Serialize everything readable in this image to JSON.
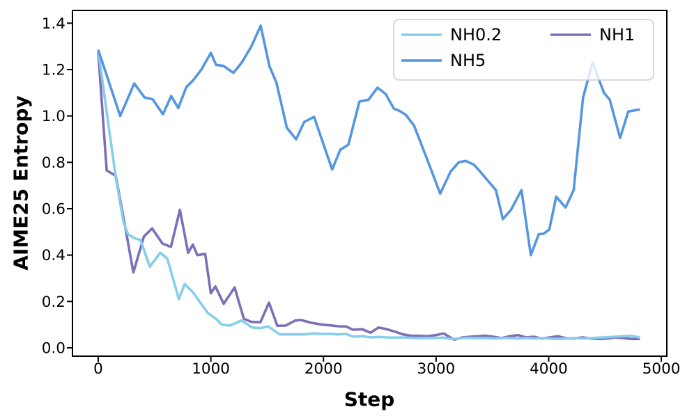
{
  "chart_data": {
    "type": "line",
    "title": "",
    "xlabel": "Step",
    "ylabel": "AIME25 Entropy",
    "xlim": [
      -229,
      5049
    ],
    "ylim": [
      -0.036,
      1.455
    ],
    "x_ticks": [
      0,
      1000,
      2000,
      3000,
      4000,
      5000
    ],
    "y_ticks": [
      0.0,
      0.2,
      0.4,
      0.6,
      0.8,
      1.0,
      1.2,
      1.4
    ],
    "grid": false,
    "legend": {
      "position": "upper right",
      "columns": 2,
      "labels": [
        "NH0.2",
        "NH5",
        "NH1"
      ]
    },
    "axis_color": "#000000",
    "series": [
      {
        "name": "NH0.2",
        "color": "#87CEEB",
        "points": [
          [
            0,
            1.285
          ],
          [
            80,
            1.0
          ],
          [
            160,
            0.72
          ],
          [
            225,
            0.54
          ],
          [
            265,
            0.49
          ],
          [
            320,
            0.473
          ],
          [
            375,
            0.465
          ],
          [
            458,
            0.35
          ],
          [
            550,
            0.41
          ],
          [
            613,
            0.385
          ],
          [
            716,
            0.21
          ],
          [
            767,
            0.275
          ],
          [
            840,
            0.24
          ],
          [
            973,
            0.15
          ],
          [
            1046,
            0.125
          ],
          [
            1097,
            0.1
          ],
          [
            1170,
            0.096
          ],
          [
            1273,
            0.118
          ],
          [
            1366,
            0.088
          ],
          [
            1440,
            0.085
          ],
          [
            1510,
            0.092
          ],
          [
            1610,
            0.058
          ],
          [
            1690,
            0.058
          ],
          [
            1760,
            0.058
          ],
          [
            1840,
            0.058
          ],
          [
            1912,
            0.062
          ],
          [
            1990,
            0.06
          ],
          [
            2060,
            0.06
          ],
          [
            2130,
            0.058
          ],
          [
            2200,
            0.06
          ],
          [
            2263,
            0.048
          ],
          [
            2345,
            0.05
          ],
          [
            2420,
            0.045
          ],
          [
            2490,
            0.047
          ],
          [
            2560,
            0.045
          ],
          [
            2634,
            0.044
          ],
          [
            2706,
            0.045
          ],
          [
            2780,
            0.043
          ],
          [
            2850,
            0.042
          ],
          [
            2925,
            0.043
          ],
          [
            3000,
            0.042
          ],
          [
            3067,
            0.044
          ],
          [
            3137,
            0.038
          ],
          [
            3232,
            0.042
          ],
          [
            3304,
            0.043
          ],
          [
            3375,
            0.042
          ],
          [
            3438,
            0.043
          ],
          [
            3510,
            0.04
          ],
          [
            3582,
            0.042
          ],
          [
            3655,
            0.042
          ],
          [
            3727,
            0.04
          ],
          [
            3800,
            0.042
          ],
          [
            3870,
            0.04
          ],
          [
            3940,
            0.042
          ],
          [
            4010,
            0.04
          ],
          [
            4080,
            0.038
          ],
          [
            4150,
            0.04
          ],
          [
            4222,
            0.042
          ],
          [
            4300,
            0.04
          ],
          [
            4380,
            0.042
          ],
          [
            4450,
            0.044
          ],
          [
            4520,
            0.046
          ],
          [
            4590,
            0.048
          ],
          [
            4660,
            0.05
          ],
          [
            4738,
            0.052
          ],
          [
            4810,
            0.044
          ]
        ]
      },
      {
        "name": "NH5",
        "color": "#5596E0",
        "points": [
          [
            0,
            1.285
          ],
          [
            195,
            1.0
          ],
          [
            320,
            1.14
          ],
          [
            410,
            1.08
          ],
          [
            483,
            1.072
          ],
          [
            575,
            1.007
          ],
          [
            648,
            1.086
          ],
          [
            710,
            1.034
          ],
          [
            782,
            1.124
          ],
          [
            843,
            1.154
          ],
          [
            916,
            1.2
          ],
          [
            1000,
            1.272
          ],
          [
            1046,
            1.22
          ],
          [
            1112,
            1.216
          ],
          [
            1200,
            1.186
          ],
          [
            1273,
            1.229
          ],
          [
            1360,
            1.3
          ],
          [
            1442,
            1.389
          ],
          [
            1520,
            1.214
          ],
          [
            1582,
            1.144
          ],
          [
            1675,
            0.949
          ],
          [
            1757,
            0.899
          ],
          [
            1829,
            0.974
          ],
          [
            1916,
            0.996
          ],
          [
            2077,
            0.769
          ],
          [
            2149,
            0.854
          ],
          [
            2221,
            0.876
          ],
          [
            2319,
            1.062
          ],
          [
            2400,
            1.07
          ],
          [
            2479,
            1.122
          ],
          [
            2552,
            1.095
          ],
          [
            2624,
            1.032
          ],
          [
            2675,
            1.022
          ],
          [
            2731,
            1.005
          ],
          [
            2805,
            0.958
          ],
          [
            2923,
            0.81
          ],
          [
            3036,
            0.665
          ],
          [
            3129,
            0.76
          ],
          [
            3201,
            0.8
          ],
          [
            3263,
            0.806
          ],
          [
            3336,
            0.79
          ],
          [
            3400,
            0.755
          ],
          [
            3531,
            0.68
          ],
          [
            3593,
            0.555
          ],
          [
            3665,
            0.595
          ],
          [
            3758,
            0.68
          ],
          [
            3841,
            0.4
          ],
          [
            3912,
            0.49
          ],
          [
            3954,
            0.492
          ],
          [
            4005,
            0.51
          ],
          [
            4067,
            0.652
          ],
          [
            4150,
            0.605
          ],
          [
            4222,
            0.68
          ],
          [
            4305,
            1.08
          ],
          [
            4390,
            1.23
          ],
          [
            4490,
            1.1
          ],
          [
            4542,
            1.07
          ],
          [
            4634,
            0.905
          ],
          [
            4707,
            1.019
          ],
          [
            4810,
            1.028
          ]
        ]
      },
      {
        "name": "NH1",
        "color": "#7D6FB7",
        "points": [
          [
            0,
            1.275
          ],
          [
            75,
            0.765
          ],
          [
            155,
            0.742
          ],
          [
            240,
            0.52
          ],
          [
            312,
            0.325
          ],
          [
            405,
            0.48
          ],
          [
            478,
            0.515
          ],
          [
            570,
            0.45
          ],
          [
            645,
            0.435
          ],
          [
            725,
            0.595
          ],
          [
            798,
            0.41
          ],
          [
            840,
            0.445
          ],
          [
            880,
            0.4
          ],
          [
            950,
            0.405
          ],
          [
            1000,
            0.235
          ],
          [
            1040,
            0.265
          ],
          [
            1114,
            0.19
          ],
          [
            1211,
            0.26
          ],
          [
            1293,
            0.125
          ],
          [
            1360,
            0.112
          ],
          [
            1440,
            0.11
          ],
          [
            1516,
            0.195
          ],
          [
            1590,
            0.095
          ],
          [
            1665,
            0.096
          ],
          [
            1750,
            0.118
          ],
          [
            1800,
            0.12
          ],
          [
            1890,
            0.108
          ],
          [
            1990,
            0.1
          ],
          [
            2060,
            0.097
          ],
          [
            2130,
            0.093
          ],
          [
            2200,
            0.092
          ],
          [
            2263,
            0.078
          ],
          [
            2345,
            0.08
          ],
          [
            2418,
            0.065
          ],
          [
            2490,
            0.088
          ],
          [
            2562,
            0.08
          ],
          [
            2634,
            0.07
          ],
          [
            2706,
            0.058
          ],
          [
            2779,
            0.052
          ],
          [
            2851,
            0.052
          ],
          [
            2923,
            0.05
          ],
          [
            3000,
            0.055
          ],
          [
            3067,
            0.062
          ],
          [
            3160,
            0.035
          ],
          [
            3232,
            0.045
          ],
          [
            3304,
            0.048
          ],
          [
            3375,
            0.05
          ],
          [
            3438,
            0.052
          ],
          [
            3510,
            0.048
          ],
          [
            3582,
            0.042
          ],
          [
            3655,
            0.05
          ],
          [
            3727,
            0.055
          ],
          [
            3800,
            0.045
          ],
          [
            3870,
            0.048
          ],
          [
            3940,
            0.04
          ],
          [
            4010,
            0.045
          ],
          [
            4080,
            0.05
          ],
          [
            4150,
            0.042
          ],
          [
            4222,
            0.04
          ],
          [
            4300,
            0.045
          ],
          [
            4380,
            0.04
          ],
          [
            4450,
            0.038
          ],
          [
            4520,
            0.04
          ],
          [
            4590,
            0.045
          ],
          [
            4660,
            0.042
          ],
          [
            4740,
            0.038
          ],
          [
            4810,
            0.038
          ]
        ]
      }
    ]
  }
}
